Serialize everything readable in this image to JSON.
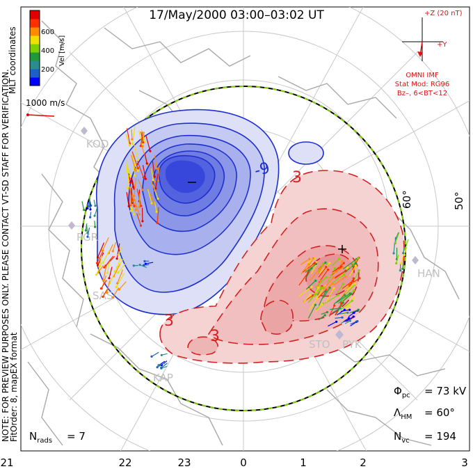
{
  "title": "17/May/2000 03:00–03:02 UT",
  "colorbar": {
    "unit_label": "Vel [m/s]",
    "ticks": [
      "600",
      "400",
      "200"
    ],
    "colors": [
      "#0000ff",
      "#1b5fc9",
      "#2a8c8c",
      "#1f9a3a",
      "#7fd000",
      "#f0e000",
      "#ff8c00",
      "#ff3000",
      "#e00000"
    ]
  },
  "side_notes": {
    "coords": "MLT coordinates",
    "preview": "NOTE: FOR PREVIEW PURPOSES ONLY. PLEASE CONTACT VT-SD STAFF FOR VERIFICATION.",
    "fit": "FitOrder: 8, mapEX format"
  },
  "scale_vector": "1000 m/s",
  "imf": {
    "z_label": "+Z (20 nT)",
    "y_label": "+Y",
    "source": "OMNI IMF",
    "model": "Stat Mod: RG96",
    "bin": "Bz–, 6<BT<12"
  },
  "latitude_labels": [
    "60°",
    "50°"
  ],
  "contour_labels": [
    "-9",
    "3",
    "3",
    "3"
  ],
  "stations": [
    "KOD",
    "PGR",
    "SAS",
    "KAP",
    "STO",
    "PYK",
    "HAN"
  ],
  "stats": {
    "phi_label": "Φ",
    "phi_sub": "pc",
    "phi_value": "= 73 kV",
    "lambda_label": "Λ",
    "lambda_sub": "HM",
    "lambda_value": "= 60°",
    "nvc_label": "N",
    "nvc_sub": "vc",
    "nvc_value": "= 194",
    "nrads_label": "N",
    "nrads_sub": "rads",
    "nrads_value": "= 7"
  },
  "mlt_ticks": [
    "21",
    "22",
    "23",
    "0",
    "1",
    "2",
    "3"
  ],
  "colors": {
    "negative_potential": "#2a3fd6",
    "positive_potential": "#d42020",
    "hm_boundary": "#000000",
    "hm_dash": "#7fd000",
    "grid": "#c8c8c8",
    "land": "#a8a8a8",
    "annotation_red": "#e01010"
  }
}
